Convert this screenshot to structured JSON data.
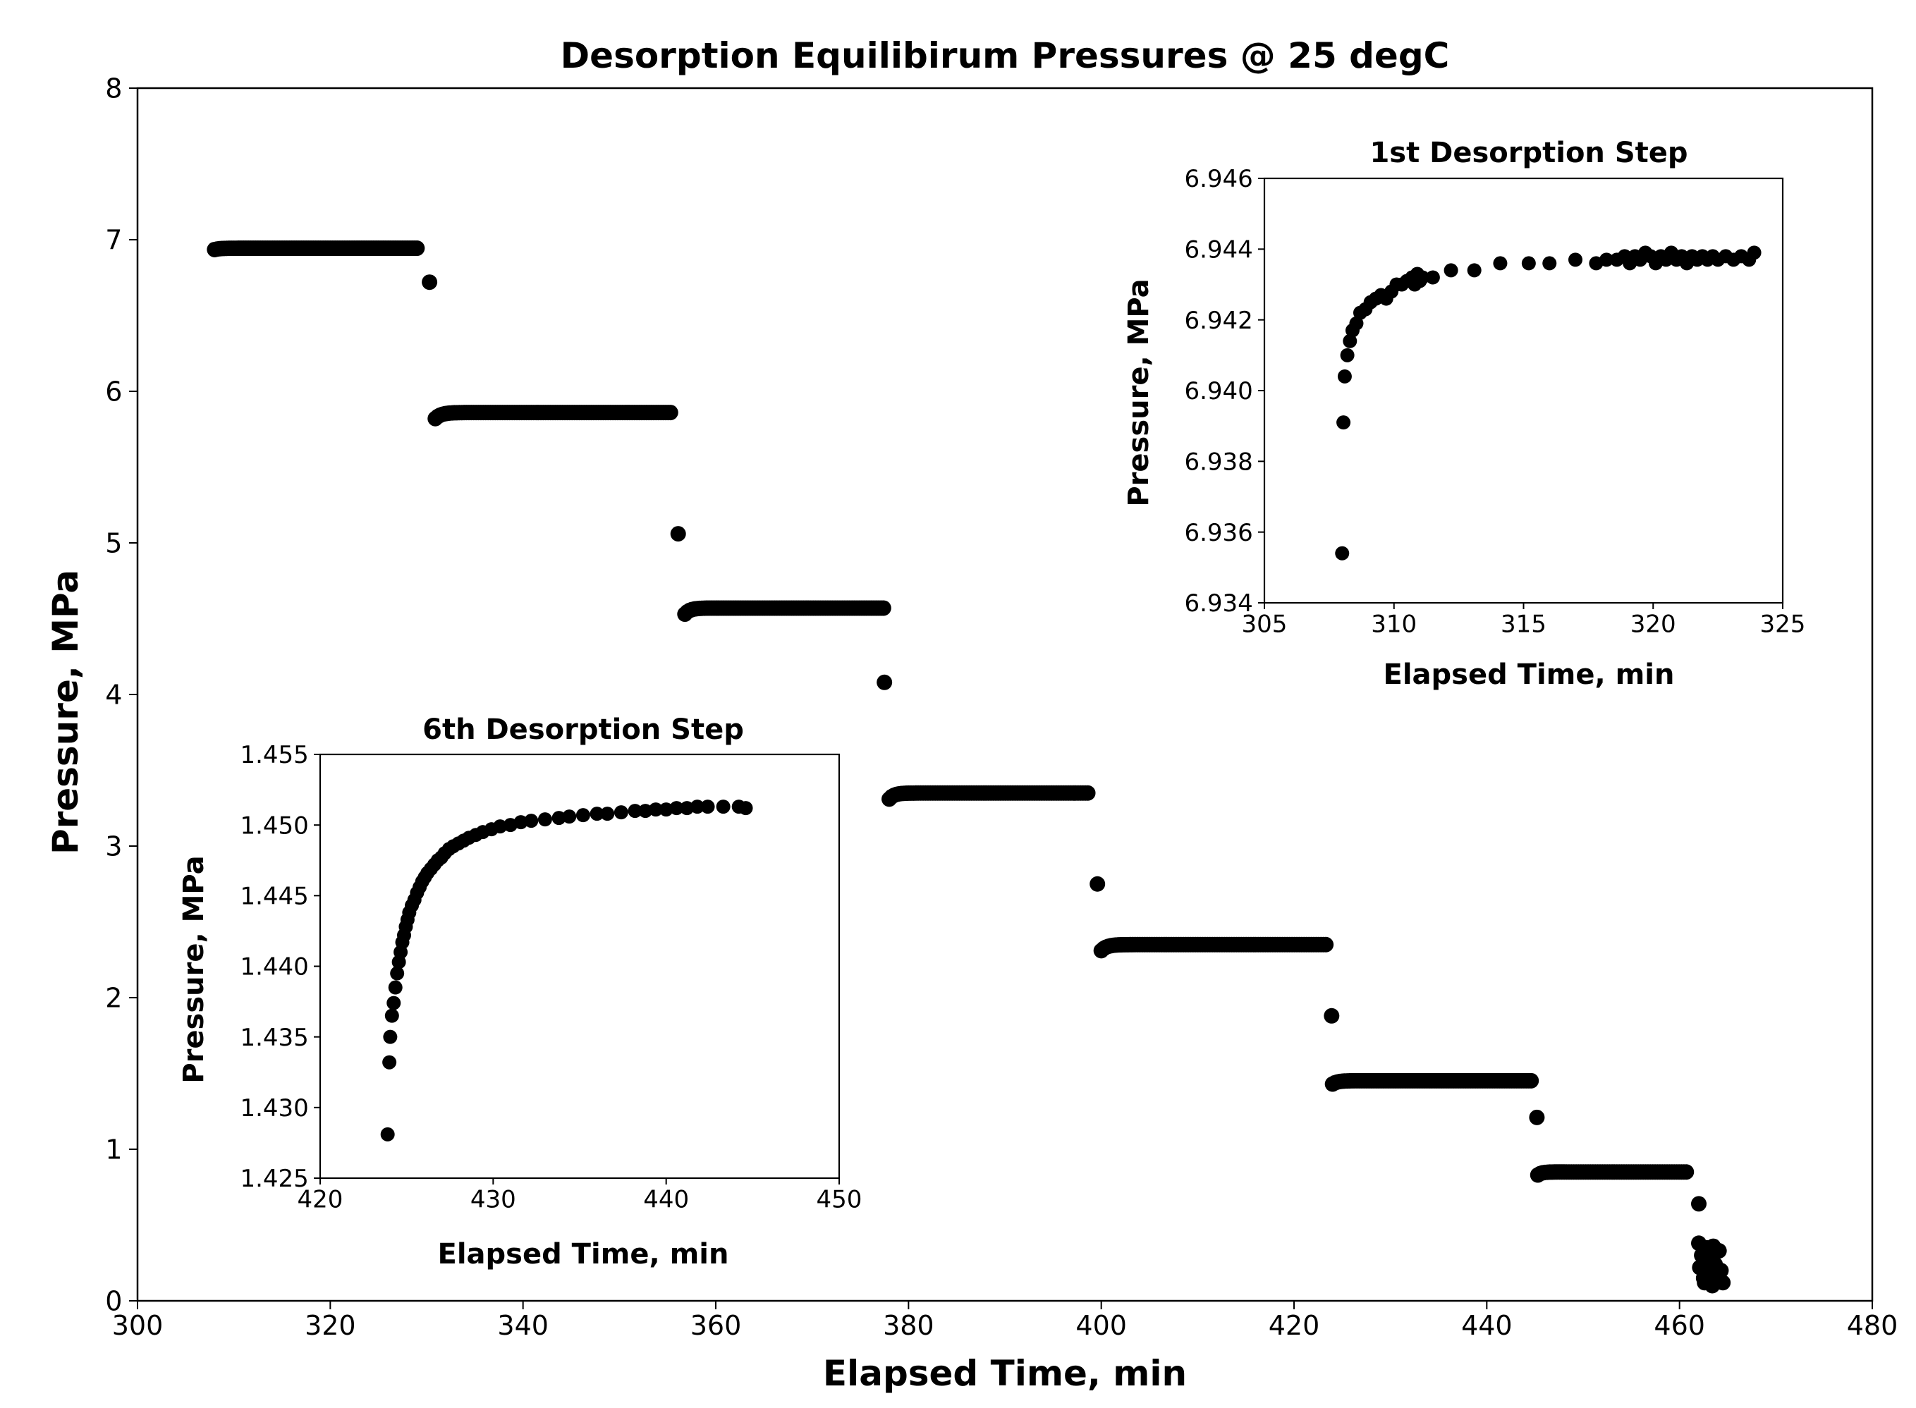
{
  "chart_data": [
    {
      "id": "main",
      "type": "scatter",
      "title": "Desorption Equilibirum Pressures @ 25 degC",
      "xlabel": "Elapsed Time, min",
      "ylabel": "Pressure, MPa",
      "xlim": [
        300,
        480
      ],
      "ylim": [
        0,
        8
      ],
      "xticks": [
        300,
        320,
        340,
        360,
        380,
        400,
        420,
        440,
        460,
        480
      ],
      "yticks": [
        0,
        1,
        2,
        3,
        4,
        5,
        6,
        7,
        8
      ],
      "xtick_labels": [
        "300",
        "320",
        "340",
        "360",
        "380",
        "400",
        "420",
        "440",
        "460",
        "480"
      ],
      "ytick_labels": [
        "0",
        "1",
        "2",
        "3",
        "4",
        "5",
        "6",
        "7",
        "8"
      ],
      "grid": false,
      "marker_color": "#000000",
      "steps": [
        {
          "x_start": 308.0,
          "x_end": 329.0,
          "y_start": 6.935,
          "y_plateau": 6.944
        },
        {
          "x_start": 330.9,
          "x_end": 355.3,
          "y_start": 5.82,
          "y_plateau": 5.86
        },
        {
          "x_start": 356.8,
          "x_end": 377.4,
          "y_start": 4.53,
          "y_plateau": 4.57
        },
        {
          "x_start": 378.0,
          "x_end": 398.6,
          "y_start": 3.31,
          "y_plateau": 3.35
        },
        {
          "x_start": 400.0,
          "x_end": 423.3,
          "y_start": 2.31,
          "y_plateau": 2.35
        },
        {
          "x_start": 424.0,
          "x_end": 444.6,
          "y_start": 1.43,
          "y_plateau": 1.452
        },
        {
          "x_start": 445.3,
          "x_end": 460.7,
          "y_start": 0.83,
          "y_plateau": 0.85
        }
      ],
      "transition_points": [
        {
          "x": 330.3,
          "y": 6.72
        },
        {
          "x": 356.1,
          "y": 5.06
        },
        {
          "x": 377.5,
          "y": 4.08
        },
        {
          "x": 399.6,
          "y": 2.75
        },
        {
          "x": 423.9,
          "y": 1.88
        },
        {
          "x": 445.2,
          "y": 1.21
        },
        {
          "x": 462.0,
          "y": 0.64
        }
      ],
      "tail_points": [
        {
          "x": 462.0,
          "y": 0.38
        },
        {
          "x": 462.3,
          "y": 0.3
        },
        {
          "x": 462.1,
          "y": 0.22
        },
        {
          "x": 462.5,
          "y": 0.15
        },
        {
          "x": 462.8,
          "y": 0.35
        },
        {
          "x": 463.0,
          "y": 0.27
        },
        {
          "x": 463.2,
          "y": 0.18
        },
        {
          "x": 463.5,
          "y": 0.36
        },
        {
          "x": 463.7,
          "y": 0.24
        },
        {
          "x": 463.9,
          "y": 0.14
        },
        {
          "x": 464.1,
          "y": 0.33
        },
        {
          "x": 464.3,
          "y": 0.2
        },
        {
          "x": 464.5,
          "y": 0.12
        },
        {
          "x": 463.4,
          "y": 0.1
        },
        {
          "x": 462.6,
          "y": 0.12
        }
      ]
    },
    {
      "id": "inset1",
      "type": "scatter",
      "title": "1st Desorption Step",
      "xlabel": "Elapsed Time, min",
      "ylabel": "Pressure, MPa",
      "xlim": [
        305,
        325
      ],
      "ylim": [
        6.934,
        6.946
      ],
      "xticks": [
        305,
        310,
        315,
        320,
        325
      ],
      "yticks": [
        6.934,
        6.936,
        6.938,
        6.94,
        6.942,
        6.944,
        6.946
      ],
      "xtick_labels": [
        "305",
        "310",
        "315",
        "320",
        "325"
      ],
      "ytick_labels": [
        "6.934",
        "6.936",
        "6.938",
        "6.940",
        "6.942",
        "6.944",
        "6.946"
      ],
      "grid": false,
      "marker_color": "#000000",
      "x": [
        308.0,
        308.05,
        308.1,
        308.2,
        308.3,
        308.4,
        308.55,
        308.7,
        308.9,
        309.1,
        309.3,
        309.5,
        309.7,
        309.9,
        310.1,
        310.3,
        310.5,
        310.7,
        310.8,
        310.9,
        311.0,
        311.1,
        311.5,
        312.2,
        313.1,
        314.1,
        315.2,
        316.0,
        317.0,
        317.8,
        318.2,
        318.6,
        318.9,
        319.1,
        319.3,
        319.5,
        319.7,
        319.9,
        320.1,
        320.3,
        320.5,
        320.7,
        320.9,
        321.1,
        321.3,
        321.5,
        321.7,
        321.9,
        322.1,
        322.3,
        322.5,
        322.8,
        323.1,
        323.4,
        323.7,
        323.9
      ],
      "y": [
        6.9354,
        6.9391,
        6.9404,
        6.941,
        6.9414,
        6.9417,
        6.9419,
        6.9422,
        6.9423,
        6.9425,
        6.9426,
        6.9427,
        6.9426,
        6.9428,
        6.943,
        6.943,
        6.9431,
        6.9432,
        6.943,
        6.9433,
        6.9431,
        6.9432,
        6.9432,
        6.9434,
        6.9434,
        6.9436,
        6.9436,
        6.9436,
        6.9437,
        6.9436,
        6.9437,
        6.9437,
        6.9438,
        6.9436,
        6.9438,
        6.9437,
        6.9439,
        6.9438,
        6.9436,
        6.9438,
        6.9437,
        6.9439,
        6.9437,
        6.9438,
        6.9436,
        6.9438,
        6.9437,
        6.9438,
        6.9437,
        6.9438,
        6.9437,
        6.9438,
        6.9437,
        6.9438,
        6.9437,
        6.9439
      ]
    },
    {
      "id": "inset6",
      "type": "scatter",
      "title": "6th Desorption Step",
      "xlabel": "Elapsed Time, min",
      "ylabel": "Pressure, MPa",
      "xlim": [
        420,
        450
      ],
      "ylim": [
        1.425,
        1.455
      ],
      "xticks": [
        420,
        430,
        440,
        450
      ],
      "yticks": [
        1.425,
        1.43,
        1.435,
        1.44,
        1.445,
        1.45,
        1.455
      ],
      "xtick_labels": [
        "420",
        "430",
        "440",
        "450"
      ],
      "ytick_labels": [
        "1.425",
        "1.430",
        "1.435",
        "1.440",
        "1.445",
        "1.450",
        "1.455"
      ],
      "grid": false,
      "marker_color": "#000000",
      "x": [
        423.9,
        424.0,
        424.05,
        424.15,
        424.25,
        424.35,
        424.45,
        424.55,
        424.65,
        424.75,
        424.85,
        424.95,
        425.05,
        425.15,
        425.3,
        425.45,
        425.6,
        425.75,
        425.9,
        426.05,
        426.2,
        426.4,
        426.6,
        426.8,
        427.0,
        427.2,
        427.45,
        427.7,
        428.0,
        428.3,
        428.6,
        429.0,
        429.4,
        429.9,
        430.4,
        431.0,
        431.6,
        432.2,
        433.0,
        433.8,
        434.4,
        435.2,
        436.0,
        436.6,
        437.4,
        438.2,
        438.8,
        439.4,
        440.0,
        440.6,
        441.2,
        441.8,
        442.4,
        443.3,
        444.2,
        444.6
      ],
      "y": [
        1.4281,
        1.4332,
        1.435,
        1.4365,
        1.4374,
        1.4385,
        1.4395,
        1.4403,
        1.441,
        1.4417,
        1.4422,
        1.4428,
        1.4433,
        1.4438,
        1.4443,
        1.4447,
        1.4452,
        1.4456,
        1.446,
        1.4463,
        1.4466,
        1.4469,
        1.4472,
        1.4475,
        1.4477,
        1.448,
        1.4483,
        1.4485,
        1.4487,
        1.4489,
        1.4491,
        1.4493,
        1.4495,
        1.4497,
        1.4499,
        1.45,
        1.4502,
        1.4503,
        1.4504,
        1.4505,
        1.4506,
        1.4507,
        1.4508,
        1.4508,
        1.4509,
        1.451,
        1.451,
        1.4511,
        1.4511,
        1.4512,
        1.4512,
        1.4513,
        1.4513,
        1.4513,
        1.4513,
        1.4512
      ]
    }
  ]
}
